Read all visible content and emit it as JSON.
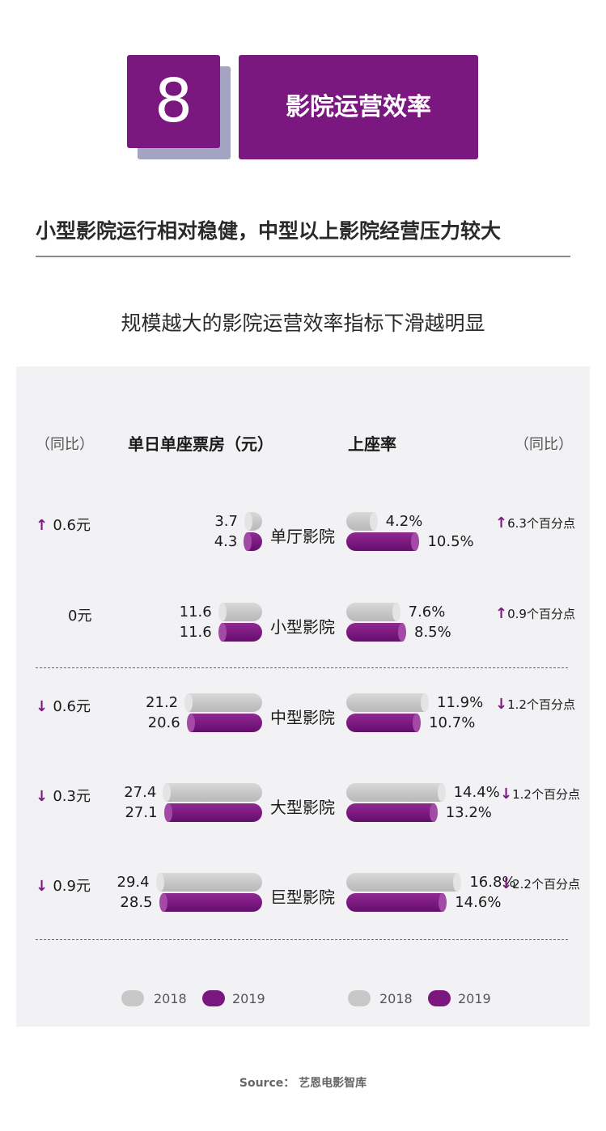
{
  "header": {
    "number": "8",
    "section_title": "影院运营效率"
  },
  "headline": "小型影院运行相对稳健，中型以上影院经营压力较大",
  "subtitle": "规模越大的影院运营效率指标下滑越明显",
  "panel": {
    "yoy_label_left": "（同比）",
    "yoy_label_right": "（同比）",
    "left_header": "单日单座票房（元）",
    "right_header": "上座率"
  },
  "chart_data": [
    {
      "type": "bar",
      "title": "单日单座票房（元）",
      "categories": [
        "单厅影院",
        "小型影院",
        "中型影院",
        "大型影院",
        "巨型影院"
      ],
      "series": [
        {
          "name": "2018",
          "values": [
            3.7,
            11.6,
            21.2,
            27.4,
            29.4
          ],
          "labels": [
            "3.7",
            "11.6",
            "21.2",
            "27.4",
            "29.4"
          ]
        },
        {
          "name": "2019",
          "values": [
            4.3,
            11.6,
            20.6,
            27.1,
            28.5
          ],
          "labels": [
            "4.3",
            "11.6",
            "20.6",
            "27.1",
            "28.5"
          ]
        }
      ],
      "yoy": [
        "0.6元",
        "0元",
        "0.6元",
        "0.3元",
        "0.9元"
      ],
      "yoy_direction": [
        "up",
        "none",
        "down",
        "down",
        "down"
      ]
    },
    {
      "type": "bar",
      "title": "上座率",
      "categories": [
        "单厅影院",
        "小型影院",
        "中型影院",
        "大型影院",
        "巨型影院"
      ],
      "series": [
        {
          "name": "2018",
          "values": [
            4.2,
            7.6,
            11.9,
            14.4,
            16.8
          ],
          "labels": [
            "4.2%",
            "7.6%",
            "11.9%",
            "14.4%",
            "16.8%"
          ]
        },
        {
          "name": "2019",
          "values": [
            10.5,
            8.5,
            10.7,
            13.2,
            14.6
          ],
          "labels": [
            "10.5%",
            "8.5%",
            "10.7%",
            "13.2%",
            "14.6%"
          ]
        }
      ],
      "yoy": [
        "6.3个百分点",
        "0.9个百分点",
        "1.2个百分点",
        "1.2个百分点",
        "2.2个百分点"
      ],
      "yoy_direction": [
        "up",
        "up",
        "down",
        "down",
        "down"
      ]
    }
  ],
  "legend": {
    "label_2018": "2018",
    "label_2019": "2019"
  },
  "colors": {
    "purple": "#7b1880",
    "grey": "#c4c4c4",
    "panel_bg": "#f2f2f4"
  },
  "source": "Source： 艺恩电影智库"
}
